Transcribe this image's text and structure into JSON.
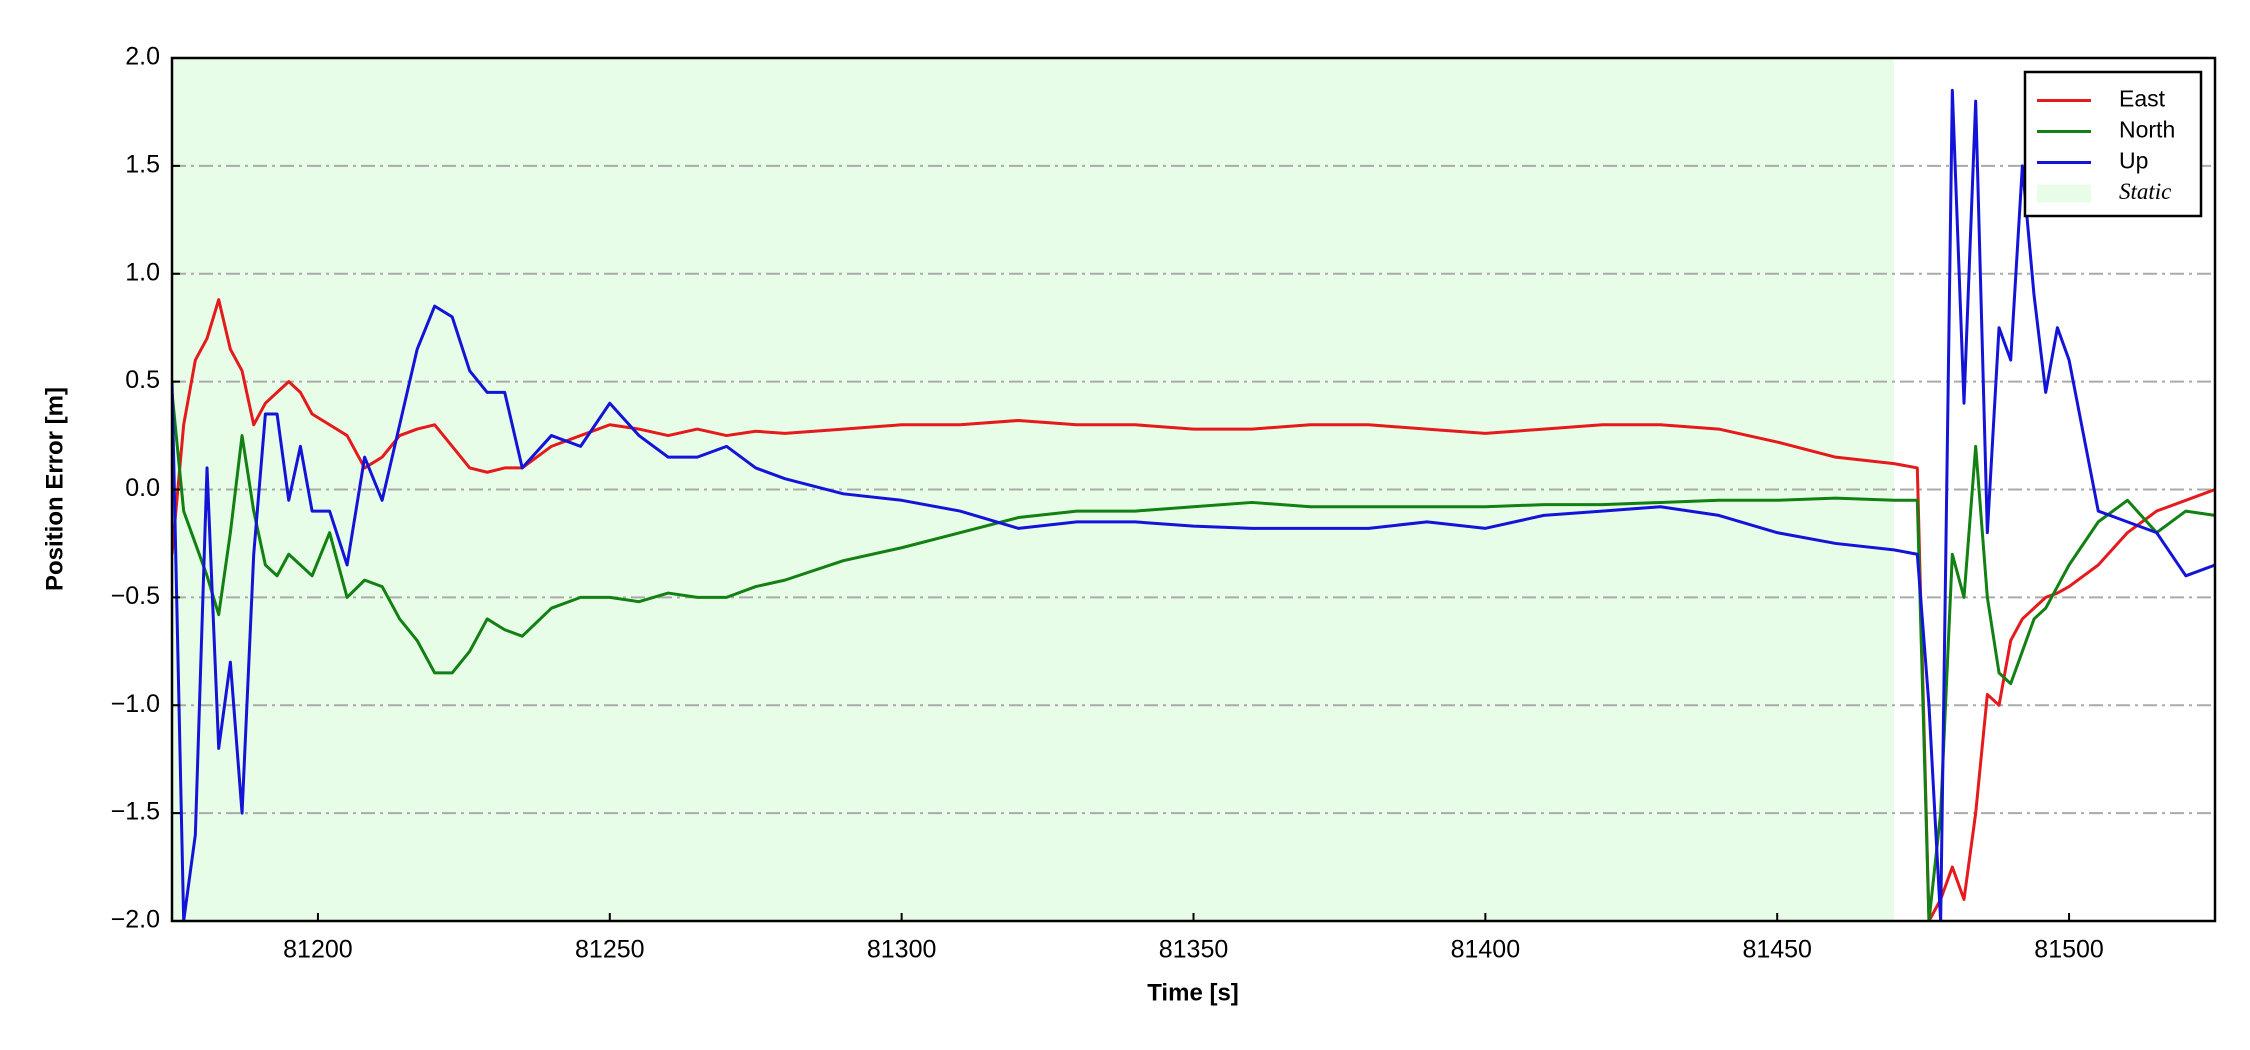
{
  "chart_data": {
    "type": "line",
    "xlabel": "Time [s]",
    "ylabel": "Position Error [m]",
    "xlim": [
      81175,
      81525
    ],
    "ylim": [
      -2,
      2
    ],
    "xticks": [
      81200,
      81250,
      81300,
      81350,
      81400,
      81450,
      81500
    ],
    "yticks": [
      {
        "value": -2,
        "label": "−2.0"
      },
      {
        "value": -1.5,
        "label": "−1.5"
      },
      {
        "value": -1,
        "label": "−1.0"
      },
      {
        "value": -0.5,
        "label": "−0.5"
      },
      {
        "value": 0,
        "label": "0.0"
      },
      0.5,
      {
        "value": 1,
        "label": "1.0"
      },
      1.5,
      {
        "value": 2,
        "label": "2.0"
      }
    ],
    "grid": true,
    "legend": "upper right",
    "shaded_region": {
      "name": "Static",
      "xlim": [
        81175,
        81470
      ],
      "color": "#e8fde8"
    },
    "x": [
      81175,
      81177,
      81179,
      81181,
      81183,
      81185,
      81187,
      81189,
      81191,
      81193,
      81195,
      81197,
      81199,
      81202,
      81205,
      81208,
      81211,
      81214,
      81217,
      81220,
      81223,
      81226,
      81229,
      81232,
      81235,
      81240,
      81245,
      81250,
      81255,
      81260,
      81265,
      81270,
      81275,
      81280,
      81290,
      81300,
      81310,
      81320,
      81330,
      81340,
      81350,
      81360,
      81370,
      81380,
      81390,
      81400,
      81410,
      81420,
      81430,
      81440,
      81450,
      81460,
      81470,
      81474,
      81476,
      81478,
      81480,
      81482,
      81484,
      81486,
      81488,
      81490,
      81492,
      81494,
      81496,
      81498,
      81500,
      81505,
      81510,
      81515,
      81520,
      81525
    ],
    "series": [
      {
        "name": "East",
        "color": "#e41a1c",
        "values": [
          -0.3,
          0.3,
          0.6,
          0.7,
          0.88,
          0.65,
          0.55,
          0.3,
          0.4,
          0.45,
          0.5,
          0.45,
          0.35,
          0.3,
          0.25,
          0.1,
          0.15,
          0.25,
          0.28,
          0.3,
          0.2,
          0.1,
          0.08,
          0.1,
          0.1,
          0.2,
          0.25,
          0.3,
          0.28,
          0.25,
          0.28,
          0.25,
          0.27,
          0.26,
          0.28,
          0.3,
          0.3,
          0.32,
          0.3,
          0.3,
          0.28,
          0.28,
          0.3,
          0.3,
          0.28,
          0.26,
          0.28,
          0.3,
          0.3,
          0.28,
          0.22,
          0.15,
          0.12,
          0.1,
          -2,
          -1.9,
          -1.75,
          -1.9,
          -1.5,
          -0.95,
          -1,
          -0.7,
          -0.6,
          -0.55,
          -0.5,
          -0.48,
          -0.45,
          -0.35,
          -0.2,
          -0.1,
          -0.05,
          0
        ]
      },
      {
        "name": "North",
        "color": "#128012",
        "values": [
          0.45,
          -0.1,
          -0.25,
          -0.4,
          -0.58,
          -0.2,
          0.25,
          -0.1,
          -0.35,
          -0.4,
          -0.3,
          -0.35,
          -0.4,
          -0.2,
          -0.5,
          -0.42,
          -0.45,
          -0.6,
          -0.7,
          -0.85,
          -0.85,
          -0.75,
          -0.6,
          -0.65,
          -0.68,
          -0.55,
          -0.5,
          -0.5,
          -0.52,
          -0.48,
          -0.5,
          -0.5,
          -0.45,
          -0.42,
          -0.33,
          -0.27,
          -0.2,
          -0.13,
          -0.1,
          -0.1,
          -0.08,
          -0.06,
          -0.08,
          -0.08,
          -0.08,
          -0.08,
          -0.07,
          -0.07,
          -0.06,
          -0.05,
          -0.05,
          -0.04,
          -0.05,
          -0.05,
          -2,
          -1.5,
          -0.3,
          -0.5,
          0.2,
          -0.5,
          -0.85,
          -0.9,
          -0.75,
          -0.6,
          -0.55,
          -0.45,
          -0.35,
          -0.15,
          -0.05,
          -0.2,
          -0.1,
          -0.12
        ]
      },
      {
        "name": "Up",
        "color": "#1414d8",
        "values": [
          0.5,
          -2,
          -1.6,
          0.1,
          -1.2,
          -0.8,
          -1.5,
          -0.3,
          0.35,
          0.35,
          -0.05,
          0.2,
          -0.1,
          -0.1,
          -0.35,
          0.15,
          -0.05,
          0.3,
          0.65,
          0.85,
          0.8,
          0.55,
          0.45,
          0.45,
          0.1,
          0.25,
          0.2,
          0.4,
          0.25,
          0.15,
          0.15,
          0.2,
          0.1,
          0.05,
          -0.02,
          -0.05,
          -0.1,
          -0.18,
          -0.15,
          -0.15,
          -0.17,
          -0.18,
          -0.18,
          -0.18,
          -0.15,
          -0.18,
          -0.12,
          -0.1,
          -0.08,
          -0.12,
          -0.2,
          -0.25,
          -0.28,
          -0.3,
          -1,
          -2,
          1.85,
          0.4,
          1.8,
          -0.2,
          0.75,
          0.6,
          1.5,
          0.9,
          0.45,
          0.75,
          0.6,
          -0.1,
          -0.15,
          -0.2,
          -0.4,
          -0.35
        ]
      }
    ]
  }
}
